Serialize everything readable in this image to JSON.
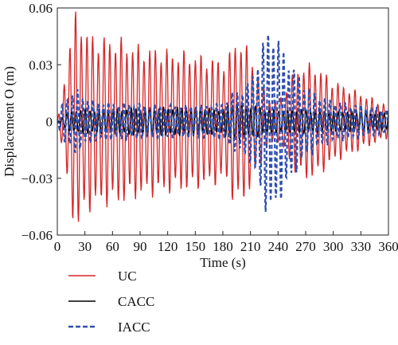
{
  "chart_data": {
    "type": "line",
    "xlabel": "Time (s)",
    "ylabel": "Displacement O (m)",
    "xlim": [
      0,
      360
    ],
    "ylim": [
      -0.06,
      0.06
    ],
    "x_ticks": [
      0,
      30,
      60,
      90,
      120,
      150,
      180,
      210,
      240,
      270,
      300,
      330,
      360
    ],
    "y_ticks": [
      -0.06,
      -0.03,
      0,
      0.03,
      0.06
    ],
    "y_tick_labels": [
      "−0.06",
      "−0.03",
      "0",
      "0.03",
      "0.06"
    ],
    "grid": false,
    "legend_position": "bottom-left, outside plot",
    "series": [
      {
        "name": "UC",
        "color": "#d62728",
        "style": "solid",
        "sample_step": 3,
        "envelope": [
          [
            0,
            0.0
          ],
          [
            5,
            0.012
          ],
          [
            10,
            0.03
          ],
          [
            15,
            0.045
          ],
          [
            20,
            0.053
          ],
          [
            24,
            0.053
          ],
          [
            30,
            0.045
          ],
          [
            40,
            0.042
          ],
          [
            50,
            0.041
          ],
          [
            60,
            0.041
          ],
          [
            70,
            0.04
          ],
          [
            80,
            0.038
          ],
          [
            90,
            0.037
          ],
          [
            100,
            0.036
          ],
          [
            110,
            0.036
          ],
          [
            120,
            0.035
          ],
          [
            130,
            0.034
          ],
          [
            140,
            0.034
          ],
          [
            150,
            0.033
          ],
          [
            160,
            0.032
          ],
          [
            170,
            0.031
          ],
          [
            180,
            0.03
          ],
          [
            185,
            0.03
          ],
          [
            190,
            0.038
          ],
          [
            195,
            0.041
          ],
          [
            200,
            0.04
          ],
          [
            210,
            0.034
          ],
          [
            220,
            0.022
          ],
          [
            230,
            0.012
          ],
          [
            240,
            0.01
          ],
          [
            250,
            0.018
          ],
          [
            260,
            0.026
          ],
          [
            270,
            0.028
          ],
          [
            280,
            0.028
          ],
          [
            290,
            0.024
          ],
          [
            300,
            0.02
          ],
          [
            310,
            0.018
          ],
          [
            320,
            0.016
          ],
          [
            330,
            0.014
          ],
          [
            340,
            0.012
          ],
          [
            350,
            0.01
          ],
          [
            360,
            0.008
          ]
        ],
        "period": 6.2,
        "phase": 0.3
      },
      {
        "name": "CACC",
        "color": "#000000",
        "style": "solid",
        "sample_step": 2,
        "envelope": [
          [
            0,
            0.0
          ],
          [
            10,
            0.004
          ],
          [
            20,
            0.006
          ],
          [
            40,
            0.006
          ],
          [
            60,
            0.006
          ],
          [
            90,
            0.007
          ],
          [
            120,
            0.007
          ],
          [
            150,
            0.007
          ],
          [
            180,
            0.006
          ],
          [
            190,
            0.01
          ],
          [
            210,
            0.008
          ],
          [
            240,
            0.006
          ],
          [
            270,
            0.006
          ],
          [
            300,
            0.005
          ],
          [
            330,
            0.005
          ],
          [
            360,
            0.004
          ]
        ],
        "period": 5.0,
        "phase": 1.0
      },
      {
        "name": "IACC",
        "color": "#2f4fb0",
        "style": "dashed",
        "sample_step": 2,
        "envelope": [
          [
            0,
            0.0
          ],
          [
            5,
            0.008
          ],
          [
            10,
            0.012
          ],
          [
            20,
            0.016
          ],
          [
            30,
            0.012
          ],
          [
            40,
            0.01
          ],
          [
            60,
            0.009
          ],
          [
            80,
            0.009
          ],
          [
            100,
            0.008
          ],
          [
            120,
            0.008
          ],
          [
            140,
            0.008
          ],
          [
            160,
            0.008
          ],
          [
            180,
            0.009
          ],
          [
            190,
            0.014
          ],
          [
            200,
            0.016
          ],
          [
            210,
            0.02
          ],
          [
            220,
            0.034
          ],
          [
            228,
            0.045
          ],
          [
            234,
            0.046
          ],
          [
            240,
            0.04
          ],
          [
            250,
            0.032
          ],
          [
            260,
            0.024
          ],
          [
            270,
            0.018
          ],
          [
            280,
            0.014
          ],
          [
            300,
            0.01
          ],
          [
            330,
            0.008
          ],
          [
            360,
            0.006
          ]
        ],
        "period": 5.6,
        "phase": 2.0
      }
    ]
  }
}
